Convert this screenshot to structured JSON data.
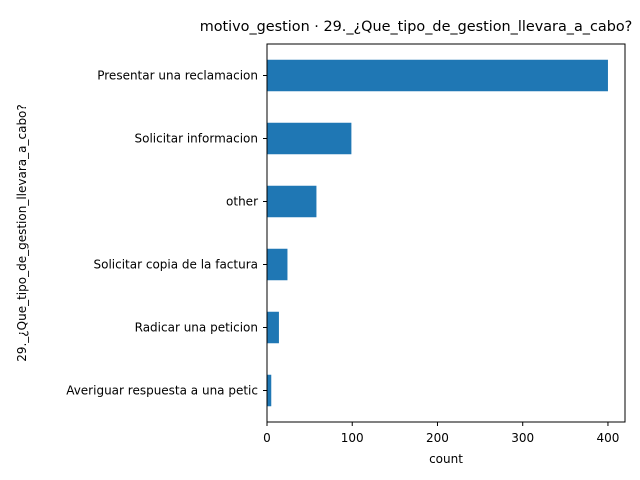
{
  "chart_data": {
    "type": "bar",
    "orientation": "horizontal",
    "title": "motivo_gestion · 29._¿Que_tipo_de_gestion_llevara_a_cabo?",
    "xlabel": "count",
    "ylabel": "29._¿Que_tipo_de_gestion_llevara_a_cabo?",
    "categories": [
      "Presentar una reclamacion",
      "Solicitar informacion",
      "other",
      "Solicitar copia de la factura",
      "Radicar una peticion",
      "Averiguar respuesta a una petic"
    ],
    "values": [
      400,
      99,
      58,
      24,
      14,
      5
    ],
    "xlim": [
      0,
      420
    ],
    "xticks": [
      0,
      100,
      200,
      300,
      400
    ],
    "grid": false,
    "legend": "none",
    "colors": {
      "bar": "#1f77b4"
    }
  }
}
